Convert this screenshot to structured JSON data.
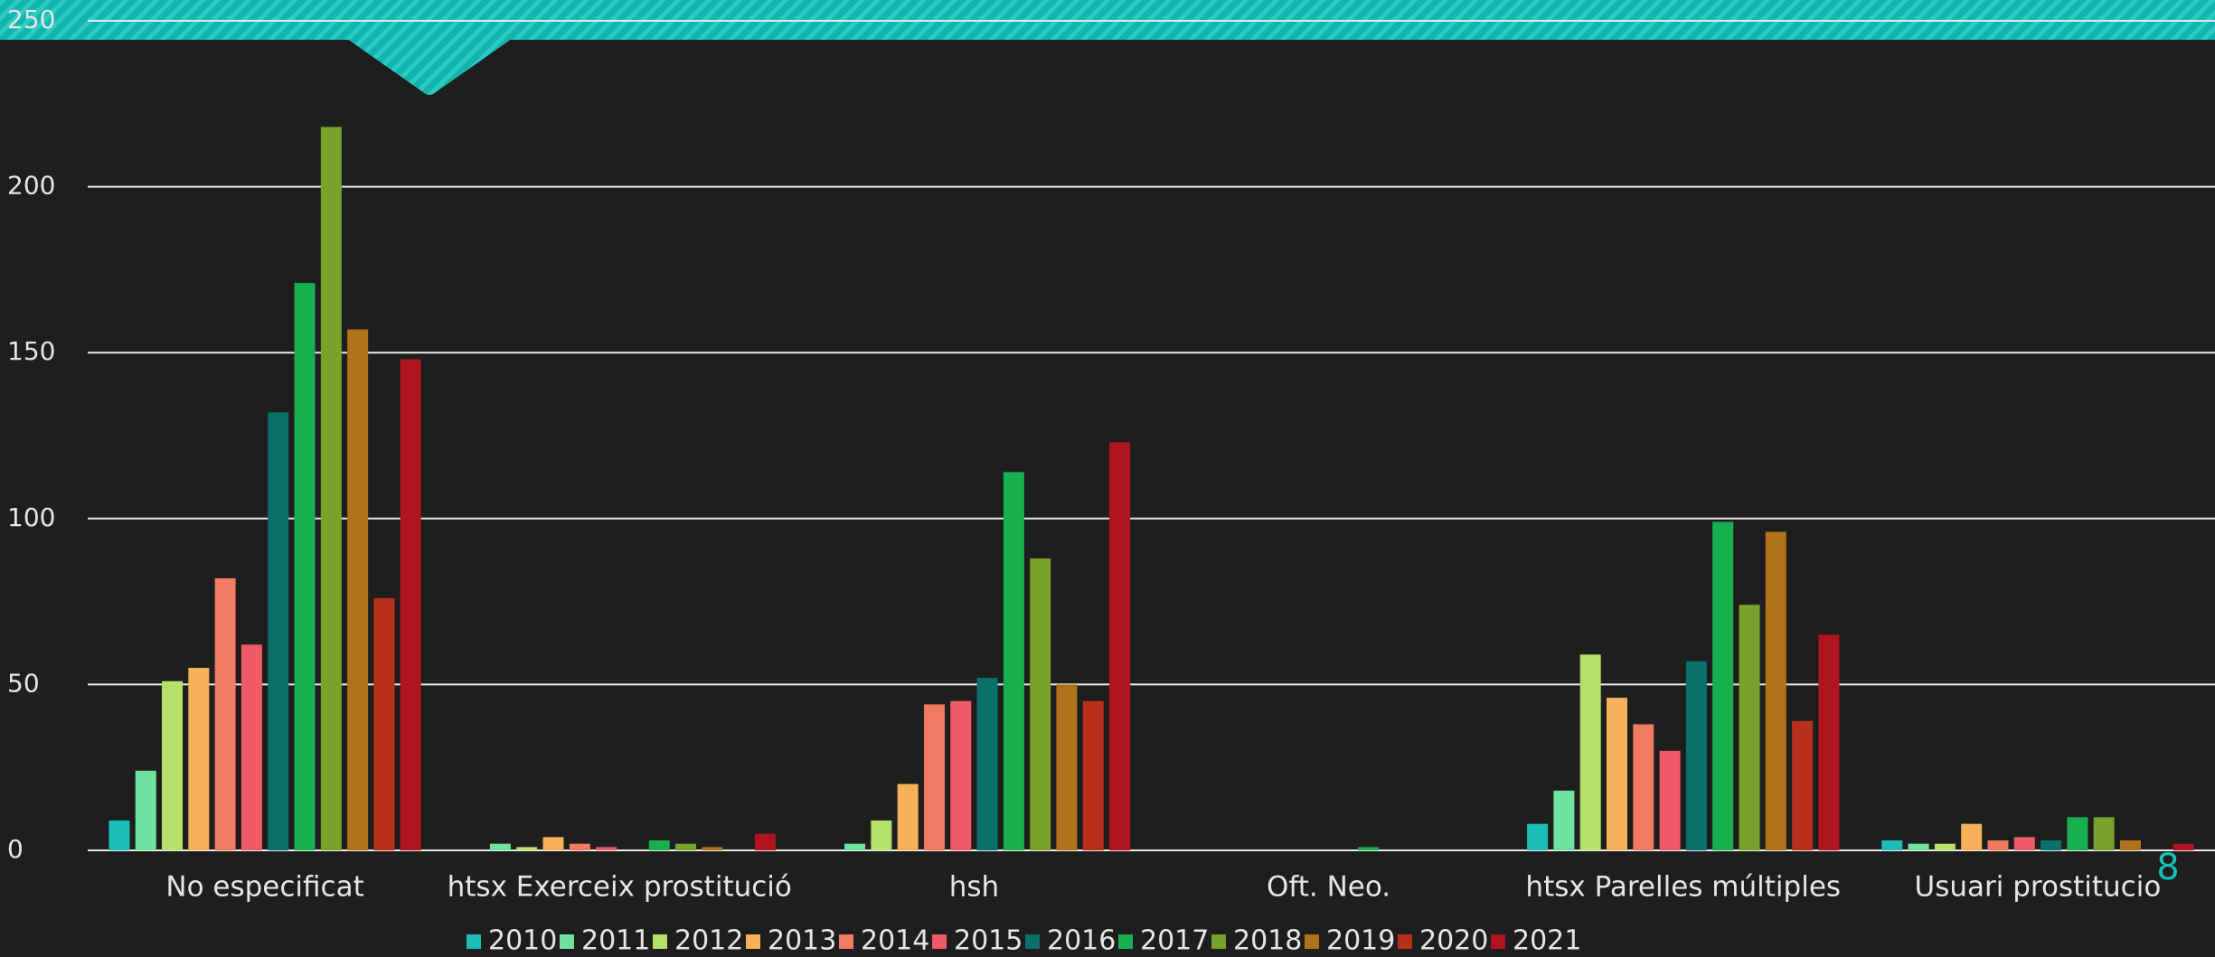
{
  "page_number": "8",
  "chart_data": {
    "type": "bar",
    "categories": [
      "No especificat",
      "htsx Exerceix prostitució",
      "hsh",
      "Oft. Neo.",
      "htsx Parelles múltiples",
      "Usuari prostitucio"
    ],
    "series": [
      {
        "name": "2010",
        "color": "#1bbfb8",
        "values": [
          9,
          0,
          0,
          0,
          8,
          3
        ]
      },
      {
        "name": "2011",
        "color": "#6ee3a0",
        "values": [
          24,
          2,
          2,
          0,
          18,
          2
        ]
      },
      {
        "name": "2012",
        "color": "#b5e06a",
        "values": [
          51,
          1,
          9,
          0,
          59,
          2
        ]
      },
      {
        "name": "2013",
        "color": "#f5b25a",
        "values": [
          55,
          4,
          20,
          0,
          46,
          8
        ]
      },
      {
        "name": "2014",
        "color": "#f07a62",
        "values": [
          82,
          2,
          44,
          0,
          38,
          3
        ]
      },
      {
        "name": "2015",
        "color": "#ee5a66",
        "values": [
          62,
          1,
          45,
          0,
          30,
          4
        ]
      },
      {
        "name": "2016",
        "color": "#0b6f6a",
        "values": [
          132,
          0,
          52,
          0,
          57,
          3
        ]
      },
      {
        "name": "2017",
        "color": "#17b04e",
        "values": [
          171,
          3,
          114,
          1,
          99,
          10
        ]
      },
      {
        "name": "2018",
        "color": "#78a22a",
        "values": [
          218,
          2,
          88,
          0,
          74,
          10
        ]
      },
      {
        "name": "2019",
        "color": "#b0721a",
        "values": [
          157,
          1,
          50,
          0,
          96,
          3
        ]
      },
      {
        "name": "2020",
        "color": "#b8301c",
        "values": [
          76,
          0,
          45,
          0,
          39,
          0
        ]
      },
      {
        "name": "2021",
        "color": "#b0151f",
        "values": [
          148,
          5,
          123,
          0,
          65,
          2
        ]
      }
    ],
    "ylim": [
      0,
      250
    ],
    "yticks": [
      0,
      50,
      100,
      150,
      200,
      250
    ],
    "grid": true,
    "legend": "bottom"
  }
}
